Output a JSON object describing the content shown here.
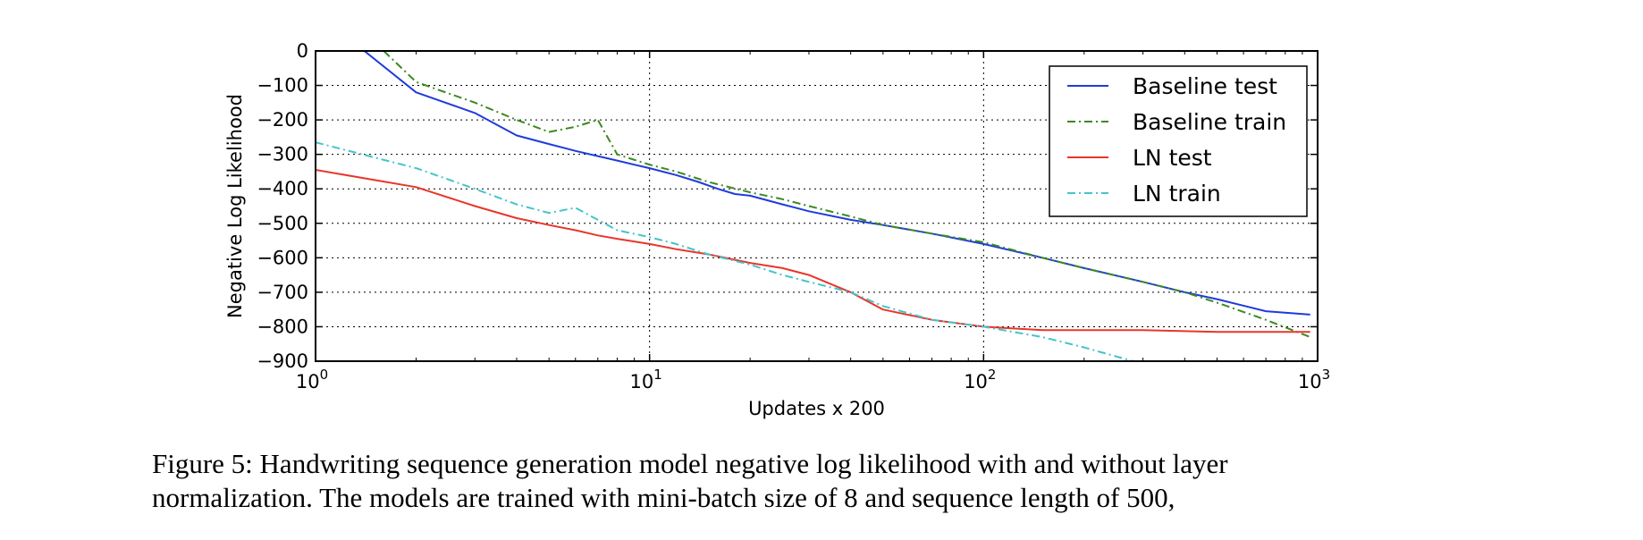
{
  "chart_data": {
    "type": "line",
    "title": "",
    "xlabel": "Updates x 200",
    "ylabel": "Negative Log Likelihood",
    "xscale": "log",
    "xlim": [
      1,
      1000
    ],
    "ylim": [
      -900,
      0
    ],
    "xticks": [
      {
        "value": 1,
        "base": "10",
        "exp": "0"
      },
      {
        "value": 10,
        "base": "10",
        "exp": "1"
      },
      {
        "value": 100,
        "base": "10",
        "exp": "2"
      },
      {
        "value": 1000,
        "base": "10",
        "exp": "3"
      }
    ],
    "yticks": [
      0,
      -100,
      -200,
      -300,
      -400,
      -500,
      -600,
      -700,
      -800,
      -900
    ],
    "yticklabels": [
      "0",
      "−100",
      "−200",
      "−300",
      "−400",
      "−500",
      "−600",
      "−700",
      "−800",
      "−900"
    ],
    "grid": true,
    "legend_position": "top-right",
    "series": [
      {
        "name": "Baseline test",
        "color": "#1f3bdb",
        "style": "solid",
        "x": [
          1.4,
          2,
          3,
          4,
          5,
          6,
          7,
          8,
          9,
          10,
          12,
          14,
          16,
          18,
          20,
          25,
          30,
          40,
          50,
          70,
          100,
          150,
          200,
          300,
          400,
          500,
          700,
          950
        ],
        "y": [
          0,
          -120,
          -180,
          -245,
          -270,
          -290,
          -305,
          -318,
          -330,
          -340,
          -360,
          -380,
          -400,
          -415,
          -420,
          -445,
          -465,
          -490,
          -505,
          -530,
          -560,
          -600,
          -630,
          -670,
          -700,
          -720,
          -755,
          -765
        ]
      },
      {
        "name": "Baseline train",
        "color": "#3a8a1f",
        "style": "dashdot",
        "x": [
          1.6,
          2,
          3,
          4,
          5,
          6,
          7,
          8,
          10,
          12,
          15,
          20,
          25,
          30,
          40,
          50,
          70,
          100,
          150,
          200,
          300,
          400,
          500,
          700,
          950
        ],
        "y": [
          0,
          -90,
          -150,
          -200,
          -235,
          -220,
          -200,
          -300,
          -330,
          -350,
          -380,
          -410,
          -430,
          -450,
          -480,
          -505,
          -530,
          -555,
          -600,
          -630,
          -670,
          -700,
          -730,
          -780,
          -830
        ]
      },
      {
        "name": "LN test",
        "color": "#e8362a",
        "style": "solid",
        "x": [
          1,
          2,
          3,
          4,
          5,
          6,
          7,
          8,
          10,
          12,
          15,
          20,
          25,
          30,
          40,
          50,
          70,
          100,
          150,
          200,
          300,
          500,
          700,
          950
        ],
        "y": [
          -345,
          -395,
          -450,
          -485,
          -505,
          -520,
          -535,
          -545,
          -560,
          -575,
          -590,
          -615,
          -630,
          -650,
          -700,
          -750,
          -780,
          -800,
          -810,
          -810,
          -810,
          -815,
          -815,
          -815
        ]
      },
      {
        "name": "LN train",
        "color": "#44c4c8",
        "style": "dashdot",
        "x": [
          1,
          2,
          3,
          4,
          5,
          6,
          7,
          8,
          10,
          12,
          15,
          20,
          25,
          30,
          40,
          50,
          70,
          100,
          150,
          200,
          280
        ],
        "y": [
          -265,
          -340,
          -400,
          -445,
          -470,
          -455,
          -490,
          -520,
          -540,
          -560,
          -590,
          -620,
          -650,
          -670,
          -700,
          -740,
          -780,
          -800,
          -830,
          -860,
          -900
        ]
      }
    ]
  },
  "caption": {
    "line1": "Figure 5:  Handwriting sequence generation model negative log likelihood with and without layer",
    "line2": "normalization. The models are trained with mini-batch size of 8 and sequence length of 500,"
  }
}
